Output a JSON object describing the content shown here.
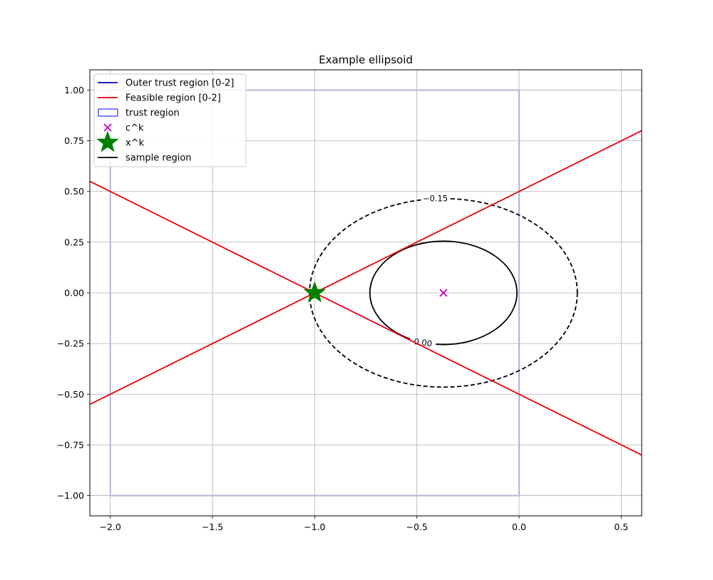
{
  "chart_data": {
    "type": "line",
    "title": "Example ellipsoid",
    "xlabel": "",
    "ylabel": "",
    "xlim": [
      -2.1,
      0.6
    ],
    "ylim": [
      -1.1,
      1.1
    ],
    "xticks": [
      -2.0,
      -1.5,
      -1.0,
      -0.5,
      0.0,
      0.5
    ],
    "xtick_labels": [
      "−2.0",
      "−1.5",
      "−1.0",
      "−0.5",
      "0.0",
      "0.5"
    ],
    "yticks": [
      -1.0,
      -0.75,
      -0.5,
      -0.25,
      0.0,
      0.25,
      0.5,
      0.75,
      1.0
    ],
    "ytick_labels": [
      "−1.00",
      "−0.75",
      "−0.50",
      "−0.25",
      "0.00",
      "0.25",
      "0.50",
      "0.75",
      "1.00"
    ],
    "grid": true,
    "legend_location": "top-left",
    "legend": [
      {
        "label": "Outer trust region [0-2]",
        "kind": "line",
        "color": "#0000cc"
      },
      {
        "label": "Feasible region [0-2]",
        "kind": "line",
        "color": "#e8000b"
      },
      {
        "label": "trust region",
        "kind": "patch",
        "color": "#0000ff"
      },
      {
        "label": "c^k",
        "kind": "marker-x",
        "color": "#bf00bf"
      },
      {
        "label": "x^k",
        "kind": "marker-star",
        "color": "#008000"
      },
      {
        "label": "sample region",
        "kind": "line",
        "color": "#000000"
      }
    ],
    "series": [
      {
        "name": "Outer trust region [0-2]",
        "shape": "rectangle",
        "corners": [
          [
            -2.0,
            -1.0
          ],
          [
            0.0,
            1.0
          ]
        ],
        "color": "#b3b3d9"
      },
      {
        "name": "Feasible region [0-2]",
        "shape": "line",
        "points": [
          [
            -2.1,
            -0.55
          ],
          [
            0.6,
            0.8
          ]
        ],
        "color": "#e8000b"
      },
      {
        "name": "Feasible region [0-2]",
        "shape": "line",
        "points": [
          [
            -2.1,
            0.55
          ],
          [
            0.6,
            -0.8
          ]
        ],
        "color": "#e8000b"
      },
      {
        "name": "c^k",
        "shape": "marker-x",
        "points": [
          [
            -0.37,
            0.0
          ]
        ],
        "color": "#bf00bf"
      },
      {
        "name": "x^k",
        "shape": "marker-star",
        "points": [
          [
            -1.0,
            0.0
          ]
        ],
        "color": "#008000"
      },
      {
        "name": "sample region",
        "shape": "ellipse",
        "center": [
          -0.37,
          0.0
        ],
        "radii": [
          0.36,
          0.255
        ],
        "style": "solid",
        "color": "#000000",
        "contour_label": "0.00",
        "label_at": [
          -0.47,
          -0.245
        ]
      },
      {
        "name": "sample region",
        "shape": "ellipse",
        "center": [
          -0.37,
          0.0
        ],
        "radii": [
          0.655,
          0.465
        ],
        "style": "dashed",
        "color": "#000000",
        "contour_label": "−0.15",
        "label_at": [
          -0.41,
          0.465
        ]
      }
    ]
  }
}
